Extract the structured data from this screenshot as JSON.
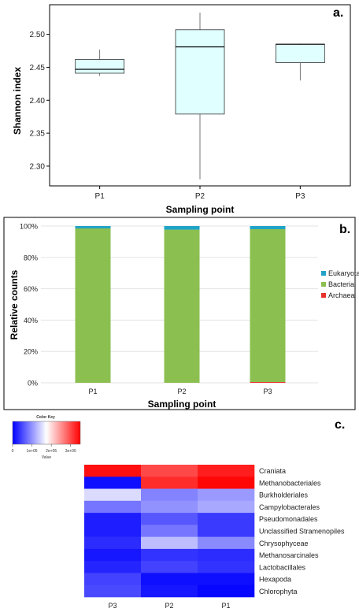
{
  "chart_data": [
    {
      "type": "box",
      "panel_label": "a.",
      "xlabel": "Sampling point",
      "ylabel": "Shannon index",
      "categories": [
        "P1",
        "P2",
        "P3"
      ],
      "ylim": [
        2.27,
        2.545
      ],
      "yticks": [
        "2.30",
        "2.35",
        "2.40",
        "2.45",
        "2.50"
      ],
      "grid": false,
      "box_color": "#e0ffff",
      "boxes": [
        {
          "category": "P1",
          "min": 2.437,
          "q1": 2.441,
          "median": 2.447,
          "q3": 2.462,
          "max": 2.477
        },
        {
          "category": "P2",
          "min": 2.28,
          "q1": 2.379,
          "median": 2.481,
          "q3": 2.507,
          "max": 2.533
        },
        {
          "category": "P3",
          "min": 2.43,
          "q1": 2.457,
          "median": 2.485,
          "q3": 2.485,
          "max": 2.486
        }
      ]
    },
    {
      "type": "bar",
      "stacked": true,
      "panel_label": "b.",
      "xlabel": "Sampling point",
      "ylabel": "Relative counts",
      "categories": [
        "P1",
        "P2",
        "P3"
      ],
      "ylim": [
        0,
        100
      ],
      "yticks": [
        "0%",
        "20%",
        "40%",
        "60%",
        "80%",
        "100%"
      ],
      "grid": true,
      "legend_position": "right",
      "series": [
        {
          "name": "Archaea",
          "color": "#e8312a",
          "values": [
            0,
            0,
            0.5
          ]
        },
        {
          "name": "Bacteria",
          "color": "#8bbf50",
          "values": [
            98.5,
            97.7,
            97.5
          ]
        },
        {
          "name": "Eukaryota",
          "color": "#1fa3c7",
          "values": [
            1.5,
            2.3,
            2.0
          ]
        }
      ]
    },
    {
      "type": "heatmap",
      "panel_label": "c.",
      "color_key": {
        "title": "Color Key",
        "xlabel": "Value",
        "ticks": [
          "0",
          "1e+05",
          "2e+05",
          "3e+05"
        ],
        "low": "#0000ff",
        "mid": "#ffffff",
        "high": "#ff0000",
        "mid_value": 175000,
        "max_value": 350000
      },
      "columns": [
        "P3",
        "P2",
        "P1"
      ],
      "rows": [
        "Craniata",
        "Methanobacteriales",
        "Burkholderiales",
        "Campylobacterales",
        "Pseudomonadales",
        "Unclassified Stramenopiles",
        "Chrysophyceae",
        "Methanosarcinales",
        "Lactobacillales",
        "Hexapoda",
        "Chlorophyta"
      ],
      "values": [
        [
          340000,
          300000,
          330000
        ],
        [
          10000,
          320000,
          345000
        ],
        [
          150000,
          90000,
          105000
        ],
        [
          80000,
          100000,
          115000
        ],
        [
          20000,
          60000,
          40000
        ],
        [
          20000,
          80000,
          40000
        ],
        [
          30000,
          130000,
          95000
        ],
        [
          15000,
          35000,
          30000
        ],
        [
          25000,
          45000,
          35000
        ],
        [
          45000,
          10000,
          10000
        ],
        [
          50000,
          15000,
          5000
        ]
      ]
    }
  ]
}
